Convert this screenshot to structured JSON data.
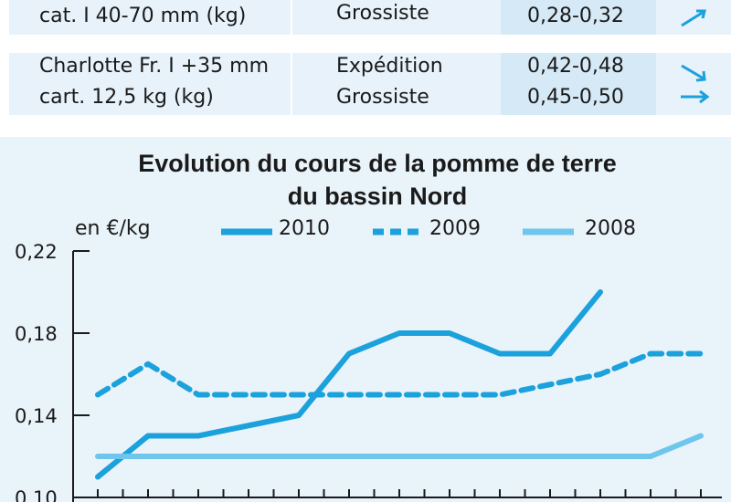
{
  "table": {
    "rows": [
      {
        "product": [
          "cat. I 40-70 mm (kg)"
        ],
        "markets": [
          "Grossiste"
        ],
        "prices": [
          "0,28-0,32"
        ],
        "trends": [
          "up-icon"
        ]
      },
      {
        "product": [
          "Charlotte Fr. I +35 mm",
          "cart. 12,5 kg (kg)"
        ],
        "markets": [
          "Expédition",
          "Grossiste"
        ],
        "prices": [
          "0,42-0,48",
          "0,45-0,50"
        ],
        "trends": [
          "down-icon",
          "right-icon"
        ]
      }
    ]
  },
  "colors": {
    "accent": "#1ba1dc",
    "light": "#6ec6ec",
    "chart_bg": "#e9f3fa",
    "table_bg": "#e7f2fa",
    "price_bg": "#d6e9f6"
  },
  "chart_data": {
    "type": "line",
    "title": "Evolution du cours de la pomme de terre du bassin Nord",
    "title_lines": [
      "Evolution du cours de la pomme de terre",
      "du bassin Nord"
    ],
    "ylabel": "en €/kg",
    "ylim": [
      0.1,
      0.22
    ],
    "yticks": [
      "0,22",
      "0,18",
      "0,14",
      "0,10"
    ],
    "grid": false,
    "legend_position": "top",
    "x": [
      1,
      2,
      3,
      4,
      5,
      6,
      7,
      8,
      9,
      10,
      11,
      12,
      13,
      14
    ],
    "series": [
      {
        "name": "2010",
        "style": "solid",
        "color": "#1ba1dc",
        "values": [
          0.11,
          0.13,
          0.13,
          0.135,
          0.14,
          0.17,
          0.18,
          0.18,
          0.17,
          0.17,
          0.2,
          null,
          null,
          null
        ]
      },
      {
        "name": "2009",
        "style": "dashed",
        "color": "#1ba1dc",
        "values": [
          0.15,
          0.165,
          0.15,
          0.15,
          0.15,
          0.15,
          0.15,
          0.15,
          0.15,
          0.155,
          0.16,
          0.17,
          0.17,
          null
        ]
      },
      {
        "name": "2008",
        "style": "solid",
        "color": "#6ec6ec",
        "values": [
          0.12,
          0.12,
          0.12,
          0.12,
          0.12,
          0.12,
          0.12,
          0.12,
          0.12,
          0.12,
          0.12,
          0.12,
          0.13,
          null
        ]
      }
    ]
  }
}
